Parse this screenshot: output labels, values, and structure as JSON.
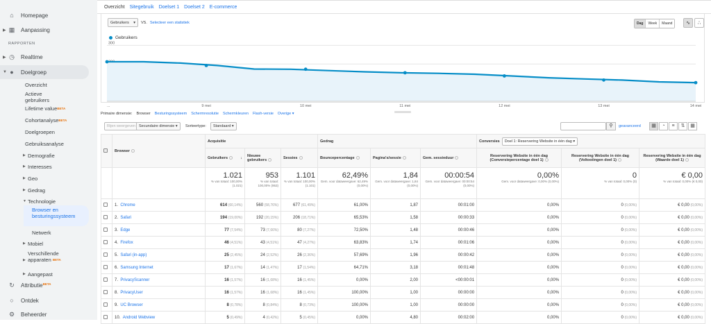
{
  "sidebar": {
    "home": "Homepage",
    "customization": "Aanpassing",
    "section": "RAPPORTEN",
    "realtime": "Realtime",
    "audience": "Doelgroep",
    "audience_items": [
      "Overzicht",
      "Actieve gebruikers",
      "Lifetime value",
      "Cohortanalyse",
      "Doelgroepen",
      "Gebruiksanalyse"
    ],
    "expand_items": [
      "Demografie",
      "Interesses",
      "Geo",
      "Gedrag",
      "Technologie"
    ],
    "tech_items": [
      "Browser en besturingssysteem",
      "Netwerk"
    ],
    "more_items": [
      "Mobiel",
      "Verschillende apparaten",
      "Aangepast"
    ],
    "attribution": "Attributie",
    "discover": "Ontdek",
    "admin": "Beheerder",
    "beta": "BETA"
  },
  "tabs": [
    "Overzicht",
    "Sitegebruik",
    "Doelset 1",
    "Doelset 2",
    "E-commerce"
  ],
  "chart_controls": {
    "metric": "Gebruikers",
    "vs": "VS.",
    "compare": "Selecteer een statistiek",
    "periods": [
      "Dag",
      "Week",
      "Maand"
    ]
  },
  "chart_data": {
    "type": "line",
    "series": [
      {
        "name": "Gebruikers",
        "values": [
          212,
          212,
          205,
          192,
          173,
          172,
          165,
          158,
          153,
          150,
          145,
          136,
          126,
          120,
          114,
          104,
          100
        ]
      }
    ],
    "x_ticks": [
      "...",
      "9 mei",
      "10 mei",
      "11 mei",
      "12 mei",
      "13 mei",
      "14 mei"
    ],
    "y_ticks": [
      300,
      200,
      100
    ],
    "ylim": [
      0,
      320
    ],
    "color": "#058dc7"
  },
  "dimension_bar": {
    "label": "Primaire dimensie:",
    "items": [
      "Browser",
      "Besturingssysteem",
      "Schermresolutie",
      "Schermkleuren",
      "Flash-versie",
      "Overige"
    ]
  },
  "toolbar": {
    "plot": "Rijen weergeven",
    "secondary": "Secundaire dimensie",
    "sort_label": "Sorteertype:",
    "sort_value": "Standaard",
    "advanced": "geavanceerd"
  },
  "table": {
    "group_headers": [
      "Acquisitie",
      "Gedrag",
      "Conversies"
    ],
    "goal_select": "Doel 1: Reservering Website in één dag",
    "col_browser": "Browser",
    "columns": [
      "Gebruikers",
      "Nieuwe gebruikers",
      "Sessies",
      "Bouncepercentage",
      "Pagina's/sessie",
      "Gem. sessieduur",
      "Reservering Website in één dag (Conversiepercentage doel 1)",
      "Reservering Website in één dag (Voltooiingen doel 1)",
      "Reservering Website in één dag (Waarde doel 1)"
    ],
    "totals": [
      {
        "v": "1.021",
        "s": "% van totaal: 100,00% (1.021)"
      },
      {
        "v": "953",
        "s": "% van totaal: 100,00% (953)"
      },
      {
        "v": "1.101",
        "s": "% van totaal: 100,00% (1.101)"
      },
      {
        "v": "62,49%",
        "s": "Gem. voor dataweergave: 62,49% (0,00%)"
      },
      {
        "v": "1,84",
        "s": "Gem. voor dataweergave: 1,84 (0,00%)"
      },
      {
        "v": "00:00:54",
        "s": "Gem. voor dataweergave: 00:00:54 (0,00%)"
      },
      {
        "v": "0,00%",
        "s": "Gem. voor dataweergave: 0,00% (0,00%)"
      },
      {
        "v": "0",
        "s": "% van totaal: 0,00% (0)"
      },
      {
        "v": "€ 0,00",
        "s": "% van totaal: 0,00% (€ 0,00)"
      }
    ],
    "rows": [
      {
        "n": "1.",
        "name": "Chrome",
        "u": "614",
        "up": "(60,14%)",
        "nu": "560",
        "nup": "(58,76%)",
        "s": "677",
        "sp": "(61,49%)",
        "b": "61,00%",
        "p": "1,87",
        "d": "00:01:00"
      },
      {
        "n": "2.",
        "name": "Safari",
        "u": "194",
        "up": "(19,00%)",
        "nu": "192",
        "nup": "(20,15%)",
        "s": "206",
        "sp": "(18,71%)",
        "b": "65,53%",
        "p": "1,58",
        "d": "00:00:33"
      },
      {
        "n": "3.",
        "name": "Edge",
        "u": "77",
        "up": "(7,54%)",
        "nu": "73",
        "nup": "(7,66%)",
        "s": "80",
        "sp": "(7,27%)",
        "b": "72,50%",
        "p": "1,48",
        "d": "00:00:46"
      },
      {
        "n": "4.",
        "name": "Firefox",
        "u": "46",
        "up": "(4,51%)",
        "nu": "43",
        "nup": "(4,51%)",
        "s": "47",
        "sp": "(4,27%)",
        "b": "63,83%",
        "p": "1,74",
        "d": "00:01:06"
      },
      {
        "n": "5.",
        "name": "Safari (in-app)",
        "u": "25",
        "up": "(2,45%)",
        "nu": "24",
        "nup": "(2,52%)",
        "s": "26",
        "sp": "(2,36%)",
        "b": "57,69%",
        "p": "1,96",
        "d": "00:00:42"
      },
      {
        "n": "6.",
        "name": "Samsung Internet",
        "u": "17",
        "up": "(1,67%)",
        "nu": "14",
        "nup": "(1,47%)",
        "s": "17",
        "sp": "(1,54%)",
        "b": "64,71%",
        "p": "3,18",
        "d": "00:01:48"
      },
      {
        "n": "7.",
        "name": "PrivacyScanner",
        "u": "16",
        "up": "(1,57%)",
        "nu": "16",
        "nup": "(1,68%)",
        "s": "16",
        "sp": "(1,45%)",
        "b": "0,00%",
        "p": "2,00",
        "d": "<00:00:01"
      },
      {
        "n": "8.",
        "name": "PrivacyUser",
        "u": "16",
        "up": "(1,57%)",
        "nu": "16",
        "nup": "(1,68%)",
        "s": "16",
        "sp": "(1,45%)",
        "b": "100,00%",
        "p": "1,00",
        "d": "00:00:00"
      },
      {
        "n": "9.",
        "name": "UC Browser",
        "u": "8",
        "up": "(0,78%)",
        "nu": "8",
        "nup": "(0,84%)",
        "s": "8",
        "sp": "(0,73%)",
        "b": "100,00%",
        "p": "1,00",
        "d": "00:00:00"
      },
      {
        "n": "10.",
        "name": "Android Webview",
        "u": "5",
        "up": "(0,49%)",
        "nu": "4",
        "nup": "(0,42%)",
        "s": "5",
        "sp": "(0,45%)",
        "b": "0,00%",
        "p": "4,80",
        "d": "00:02:00"
      }
    ],
    "conv": {
      "rate": "0,00%",
      "comp": "0",
      "comp_p": "(0,00%)",
      "val": "€ 0,00",
      "val_p": "(0,00%)"
    }
  }
}
